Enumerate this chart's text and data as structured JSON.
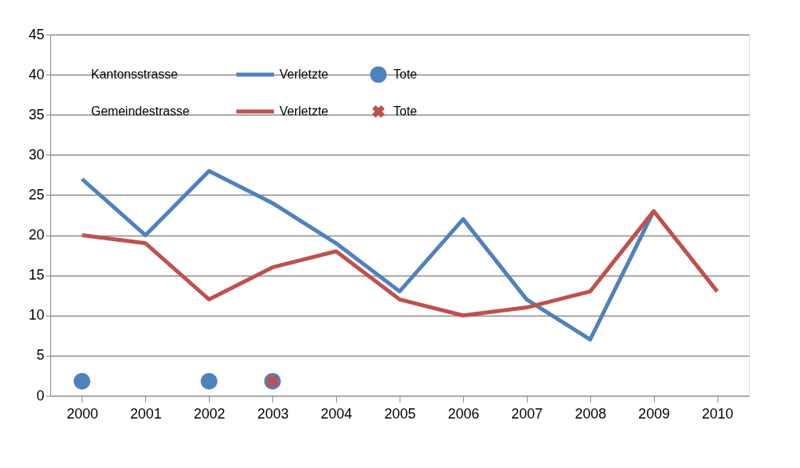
{
  "chart_data": {
    "type": "line",
    "categories": [
      "2000",
      "2001",
      "2002",
      "2003",
      "2004",
      "2005",
      "2006",
      "2007",
      "2008",
      "2009",
      "2010"
    ],
    "series": [
      {
        "name": "Verletzte",
        "type": "line",
        "color": "#4f81bd",
        "values": [
          27,
          20,
          28,
          24,
          19,
          13,
          22,
          12,
          7,
          23,
          null
        ]
      },
      {
        "name": "Tote",
        "type": "scatter",
        "marker": "circle",
        "color": "#4f81bd",
        "values": [
          1.8,
          null,
          1.8,
          1.8,
          null,
          null,
          null,
          null,
          null,
          null,
          null
        ]
      },
      {
        "name": "Verletzte",
        "type": "line",
        "color": "#c0504d",
        "values": [
          20,
          19,
          12,
          16,
          18,
          12,
          10,
          11,
          13,
          23,
          13
        ]
      },
      {
        "name": "Tote",
        "type": "scatter",
        "marker": "cross",
        "color": "#c0504d",
        "values": [
          null,
          null,
          null,
          1.8,
          null,
          null,
          null,
          null,
          null,
          null,
          null
        ]
      }
    ],
    "annotations": [
      "Kantonsstrasse",
      "Gemeindestrasse"
    ],
    "ylim": [
      0,
      45
    ],
    "yticks": [
      0,
      5,
      10,
      15,
      20,
      25,
      30,
      35,
      40,
      45
    ],
    "grid": "y",
    "legend": "top left"
  }
}
